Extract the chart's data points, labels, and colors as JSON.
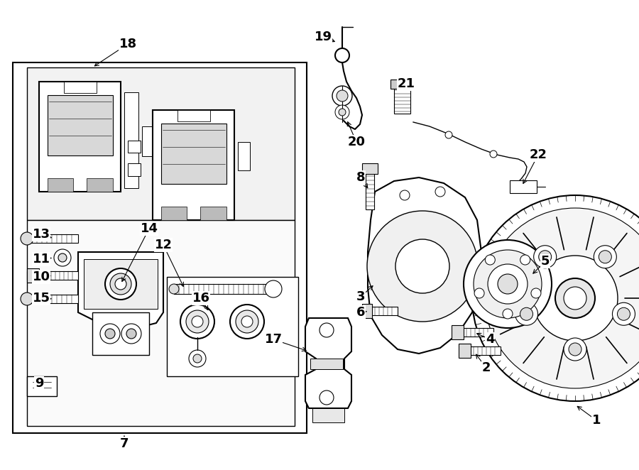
{
  "bg_color": "#ffffff",
  "line_color": "#000000",
  "text_color": "#000000",
  "fig_width": 9.0,
  "fig_height": 6.62,
  "dpi": 100
}
